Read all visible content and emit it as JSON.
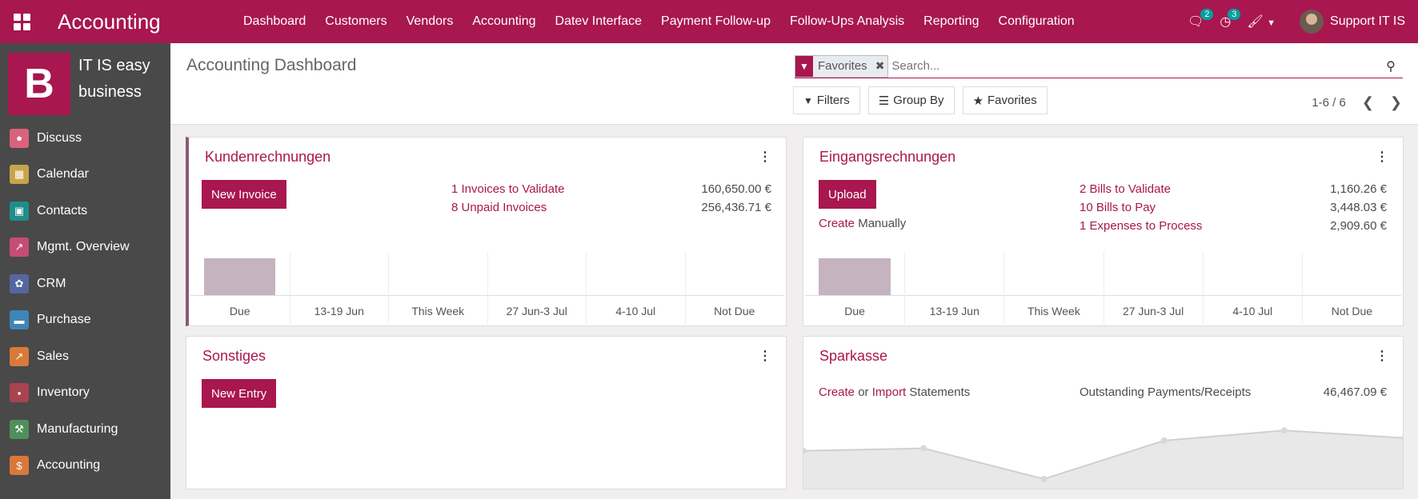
{
  "topbar": {
    "app_name": "Accounting",
    "menu": [
      "Dashboard",
      "Customers",
      "Vendors",
      "Accounting",
      "Datev Interface",
      "Payment Follow-up",
      "Follow-Ups Analysis",
      "Reporting",
      "Configuration"
    ],
    "messages_count": "2",
    "activities_count": "3",
    "user_name": "Support IT IS"
  },
  "sidebar": {
    "company_logo_letter": "B",
    "company_name": "IT IS easy business",
    "items": [
      {
        "label": "Discuss",
        "color": "#d9637c"
      },
      {
        "label": "Calendar",
        "color": "#c8a44a"
      },
      {
        "label": "Contacts",
        "color": "#1f8e8a"
      },
      {
        "label": "Mgmt. Overview",
        "color": "#c74c74"
      },
      {
        "label": "CRM",
        "color": "#5566a0"
      },
      {
        "label": "Purchase",
        "color": "#3d86b5"
      },
      {
        "label": "Sales",
        "color": "#d97a3a"
      },
      {
        "label": "Inventory",
        "color": "#a8434f"
      },
      {
        "label": "Manufacturing",
        "color": "#4f8f5b"
      },
      {
        "label": "Accounting",
        "color": "#d9783a"
      }
    ]
  },
  "control_panel": {
    "title": "Accounting Dashboard",
    "facet_label": "Favorites",
    "search_placeholder": "Search...",
    "filters_label": "Filters",
    "groupby_label": "Group By",
    "favorites_label": "Favorites",
    "pager": "1-6 / 6"
  },
  "cards": {
    "kunden": {
      "title": "Kundenrechnungen",
      "button": "New Invoice",
      "rows": [
        {
          "label": "1 Invoices to Validate",
          "amount": "160,650.00 €"
        },
        {
          "label": "8 Unpaid Invoices",
          "amount": "256,436.71 €"
        }
      ],
      "chart": {
        "categories": [
          "Due",
          "13-19 Jun",
          "This Week",
          "27 Jun-3 Jul",
          "4-10 Jul",
          "Not Due"
        ],
        "values": [
          1,
          0,
          0,
          0,
          0,
          0
        ]
      }
    },
    "eingang": {
      "title": "Eingangsrechnungen",
      "button": "Upload",
      "create_link": "Create",
      "create_rest": "Manually",
      "rows": [
        {
          "label": "2 Bills to Validate",
          "amount": "1,160.26 €"
        },
        {
          "label": "10 Bills to Pay",
          "amount": "3,448.03 €"
        },
        {
          "label": "1 Expenses to Process",
          "amount": "2,909.60 €"
        }
      ],
      "chart": {
        "categories": [
          "Due",
          "13-19 Jun",
          "This Week",
          "27 Jun-3 Jul",
          "4-10 Jul",
          "Not Due"
        ],
        "values": [
          1,
          0,
          0,
          0,
          0,
          0
        ]
      }
    },
    "sonstiges": {
      "title": "Sonstiges",
      "button": "New Entry"
    },
    "sparkasse": {
      "title": "Sparkasse",
      "create_link": "Create",
      "or_text": "or",
      "import_link": "Import",
      "statements_text": "Statements",
      "outstanding_label": "Outstanding Payments/Receipts",
      "outstanding_amount": "46,467.09 €",
      "line_values": [
        0.55,
        0.6,
        0.0,
        0.75,
        0.95,
        0.8
      ]
    }
  }
}
